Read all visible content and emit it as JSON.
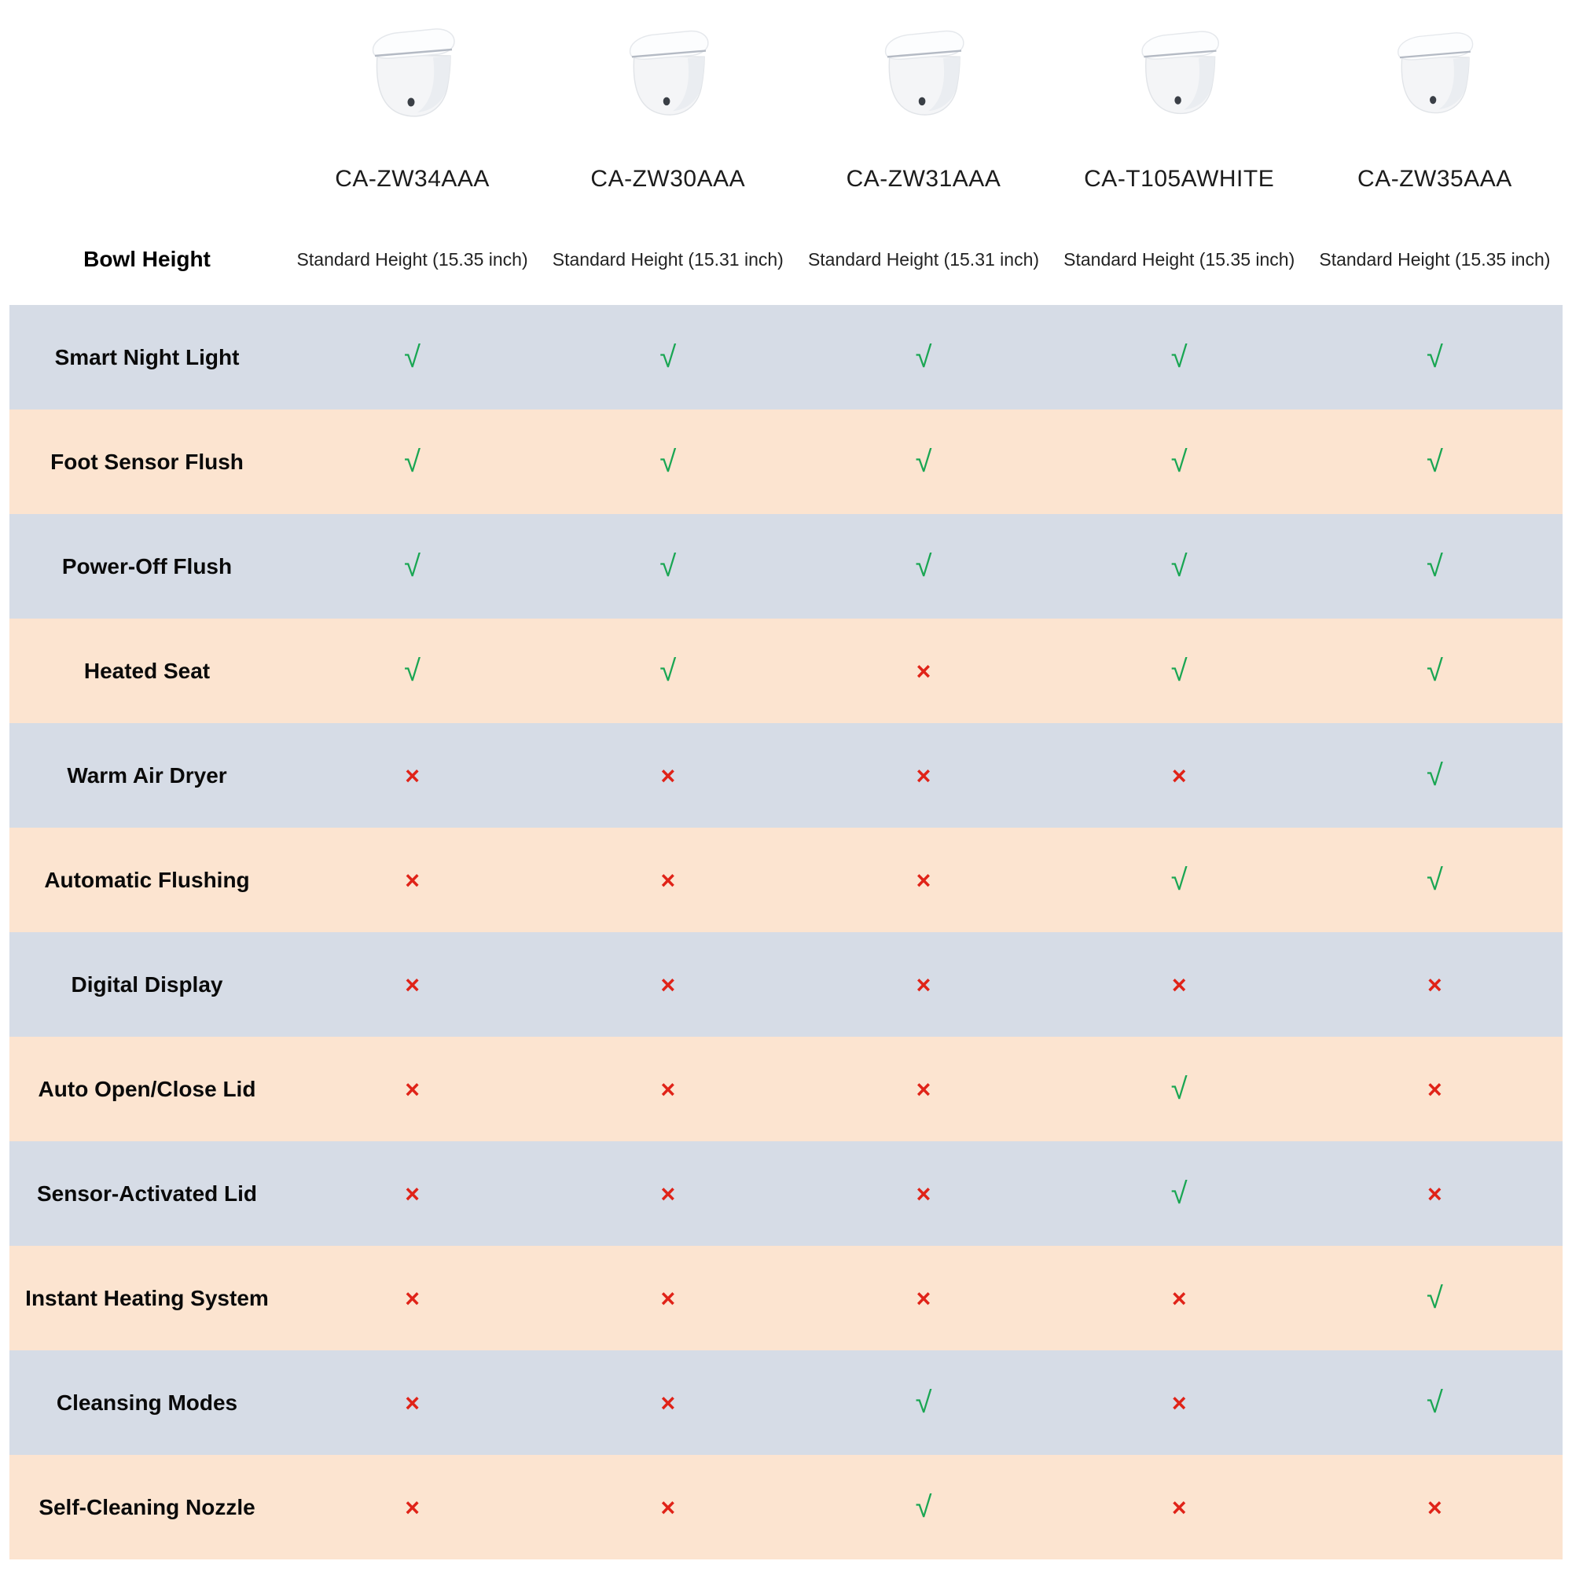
{
  "chart_data": {
    "type": "table",
    "bowl_height_label": "Bowl Height",
    "products": [
      {
        "model": "CA-ZW34AAA",
        "bowl_height": "Standard Height (15.35 inch)"
      },
      {
        "model": "CA-ZW30AAA",
        "bowl_height": "Standard Height (15.31 inch)"
      },
      {
        "model": "CA-ZW31AAA",
        "bowl_height": "Standard Height (15.31 inch)"
      },
      {
        "model": "CA-T105AWHITE",
        "bowl_height": "Standard Height (15.35 inch)"
      },
      {
        "model": "CA-ZW35AAA",
        "bowl_height": "Standard Height (15.35 inch)"
      }
    ],
    "features": [
      {
        "label": "Smart Night Light",
        "values": [
          true,
          true,
          true,
          true,
          true
        ]
      },
      {
        "label": "Foot Sensor Flush",
        "values": [
          true,
          true,
          true,
          true,
          true
        ]
      },
      {
        "label": "Power-Off Flush",
        "values": [
          true,
          true,
          true,
          true,
          true
        ]
      },
      {
        "label": "Heated Seat",
        "values": [
          true,
          true,
          false,
          true,
          true
        ]
      },
      {
        "label": "Warm Air Dryer",
        "values": [
          false,
          false,
          false,
          false,
          true
        ]
      },
      {
        "label": "Automatic Flushing",
        "values": [
          false,
          false,
          false,
          true,
          true
        ]
      },
      {
        "label": "Digital Display",
        "values": [
          false,
          false,
          false,
          false,
          false
        ]
      },
      {
        "label": "Auto Open/Close Lid",
        "values": [
          false,
          false,
          false,
          true,
          false
        ]
      },
      {
        "label": "Sensor-Activated Lid",
        "values": [
          false,
          false,
          false,
          true,
          false
        ]
      },
      {
        "label": "Instant Heating System",
        "values": [
          false,
          false,
          false,
          false,
          true
        ]
      },
      {
        "label": "Cleansing Modes",
        "values": [
          false,
          false,
          true,
          false,
          true
        ]
      },
      {
        "label": "Self-Cleaning Nozzle",
        "values": [
          false,
          false,
          true,
          false,
          false
        ]
      }
    ]
  },
  "marks": {
    "yes": "√",
    "no": "×"
  },
  "icons": {
    "product_image": "toilet-icon"
  },
  "colors": {
    "row_blue": "#d6dce6",
    "row_peach": "#fce4d0",
    "check_green": "#1aa653",
    "cross_red": "#e02318"
  }
}
